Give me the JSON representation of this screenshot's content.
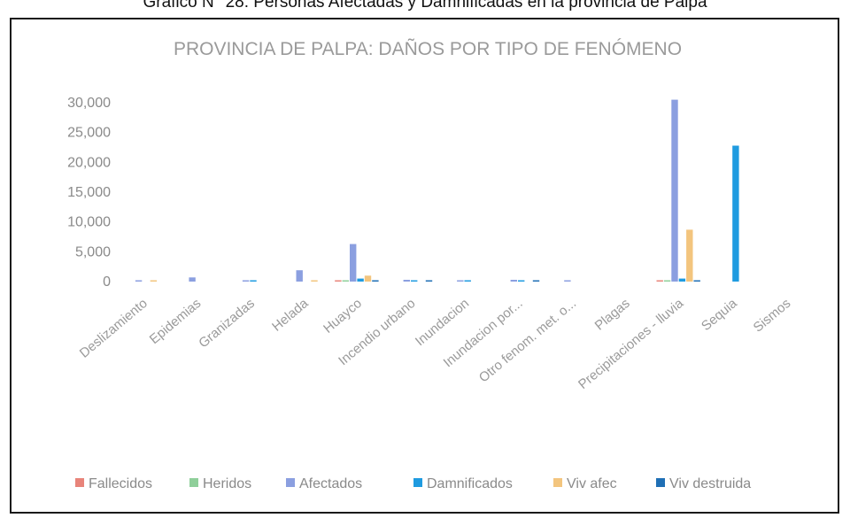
{
  "caption": "Gráfico N° 28: Personas Afectadas y Damnificadas en la provincia de Palpa",
  "chart_data": {
    "type": "bar",
    "title": "PROVINCIA DE PALPA: DAÑOS POR TIPO DE FENÓMENO",
    "xlabel": "",
    "ylabel": "",
    "ylim": [
      0,
      30000
    ],
    "yticks": [
      "0",
      "5,000",
      "10,000",
      "15,000",
      "20,000",
      "25,000",
      "30,000"
    ],
    "grid": false,
    "legend_position": "bottom",
    "categories": [
      "Deslizamiento",
      "Epidemias",
      "Granizadas",
      "Helada",
      "Huayco",
      "Incendio urbano",
      "Inundacion",
      "Inundacion por...",
      "Otro fenom. met. o...",
      "Plagas",
      "Precipitaciones - lluvia",
      "Sequia",
      "Sismos"
    ],
    "series": [
      {
        "name": "Fallecidos",
        "color": "#e8847a",
        "values": [
          0,
          0,
          0,
          0,
          10,
          0,
          0,
          0,
          0,
          0,
          5,
          0,
          0
        ]
      },
      {
        "name": "Heridos",
        "color": "#8fcf9a",
        "values": [
          0,
          0,
          0,
          0,
          20,
          0,
          0,
          0,
          0,
          0,
          20,
          0,
          0
        ]
      },
      {
        "name": "Afectados",
        "color": "#8b9fe0",
        "values": [
          100,
          700,
          100,
          1900,
          6300,
          300,
          150,
          300,
          100,
          0,
          30500,
          0,
          0
        ]
      },
      {
        "name": "Damnificados",
        "color": "#1f9be0",
        "values": [
          0,
          0,
          80,
          0,
          500,
          200,
          80,
          200,
          0,
          0,
          500,
          22800,
          0
        ]
      },
      {
        "name": "Viv afec",
        "color": "#f3c57e",
        "values": [
          100,
          0,
          0,
          200,
          1000,
          0,
          0,
          0,
          0,
          0,
          8700,
          0,
          0
        ]
      },
      {
        "name": "Viv destruida",
        "color": "#1f6fb5",
        "values": [
          0,
          0,
          0,
          0,
          150,
          50,
          0,
          50,
          0,
          0,
          150,
          0,
          0
        ]
      }
    ]
  }
}
